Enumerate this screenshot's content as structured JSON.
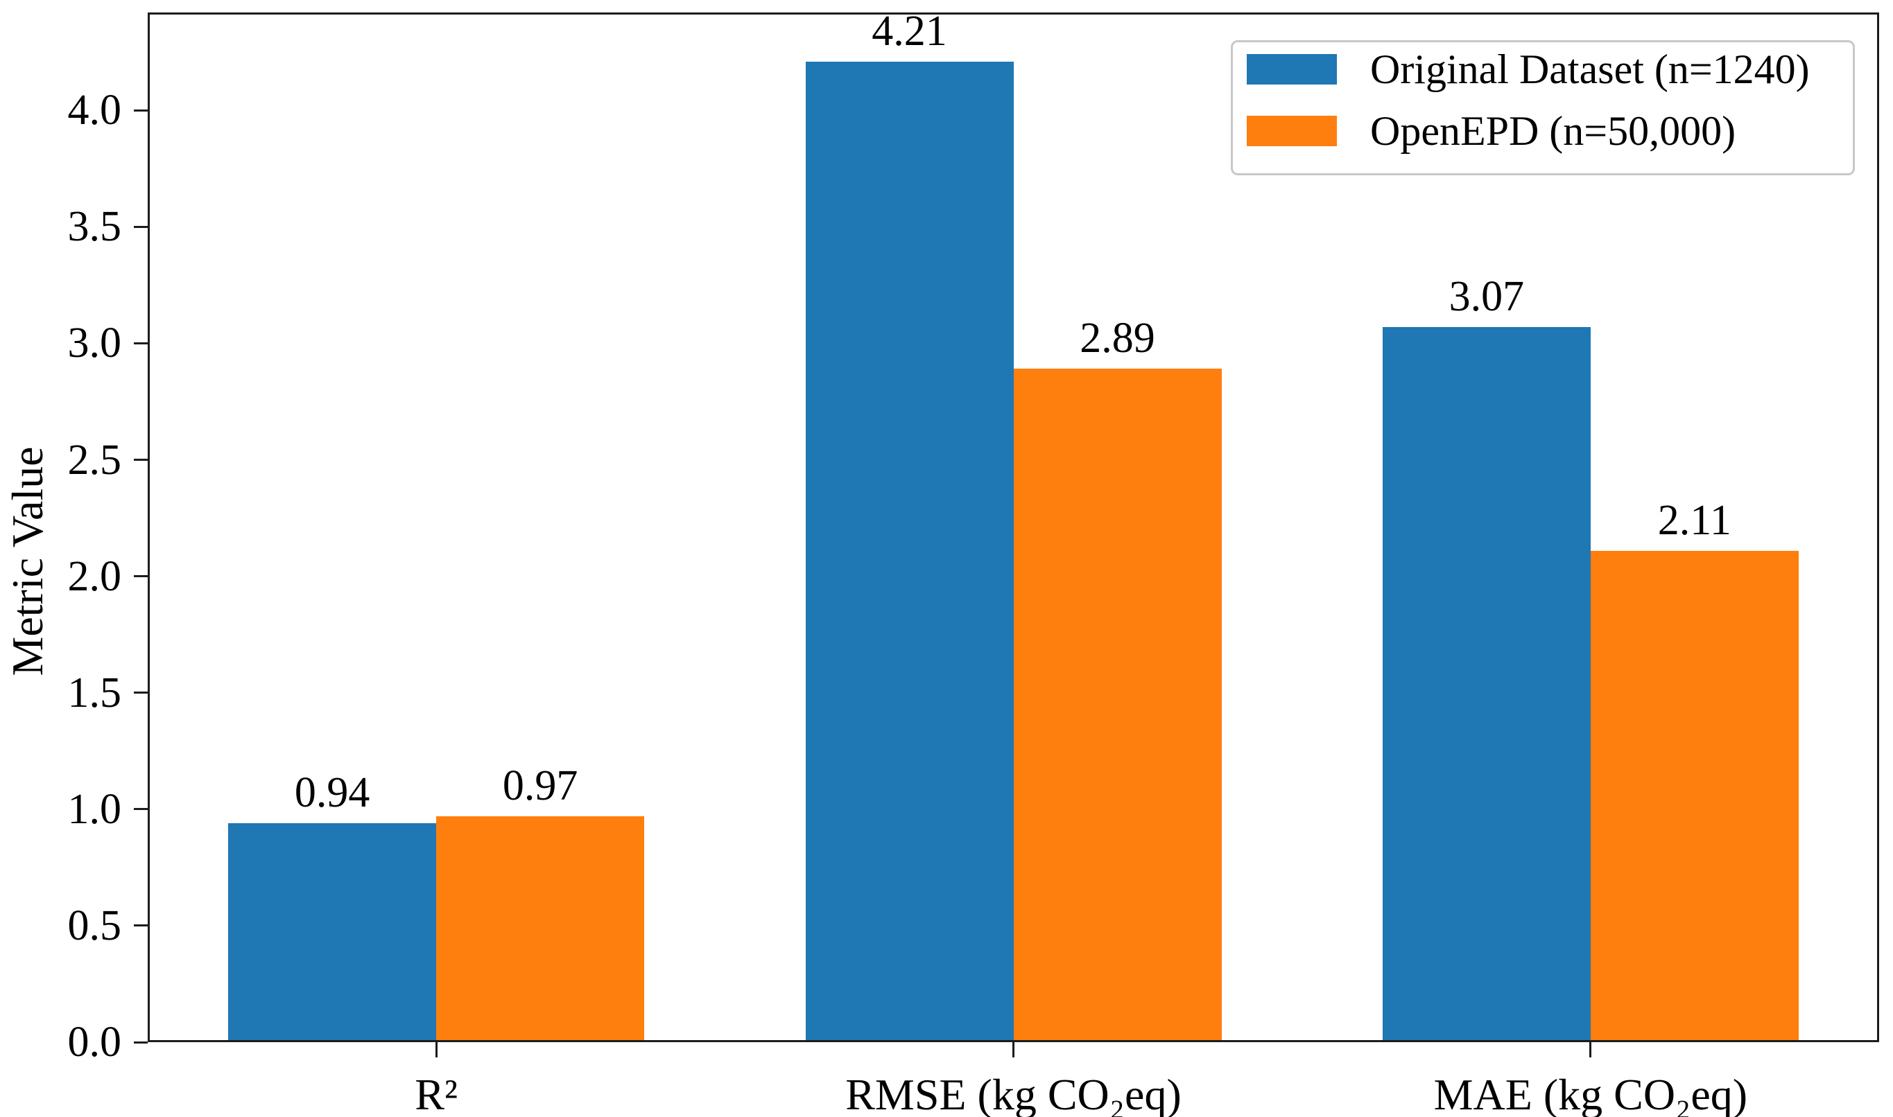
{
  "chart_data": {
    "type": "bar",
    "title": "",
    "categories": [
      "R²",
      "RMSE (kg CO₂eq)",
      "MAE (kg CO₂eq)"
    ],
    "series": [
      {
        "name": "Original Dataset (n=1240)",
        "color": "#1f77b4",
        "values": [
          0.94,
          4.21,
          3.07
        ]
      },
      {
        "name": "OpenEPD (n=50,000)",
        "color": "#ff7f0e",
        "values": [
          0.97,
          2.89,
          2.11
        ]
      }
    ],
    "bar_value_labels": [
      [
        "0.94",
        "4.21",
        "3.07"
      ],
      [
        "0.97",
        "2.89",
        "2.11"
      ]
    ],
    "xlabel": "",
    "ylabel": "Metric Value",
    "ylim": [
      0,
      4.42
    ],
    "y_ticks": [
      0.0,
      0.5,
      1.0,
      1.5,
      2.0,
      2.5,
      3.0,
      3.5,
      4.0
    ],
    "grid": false,
    "legend_position": "upper right"
  }
}
